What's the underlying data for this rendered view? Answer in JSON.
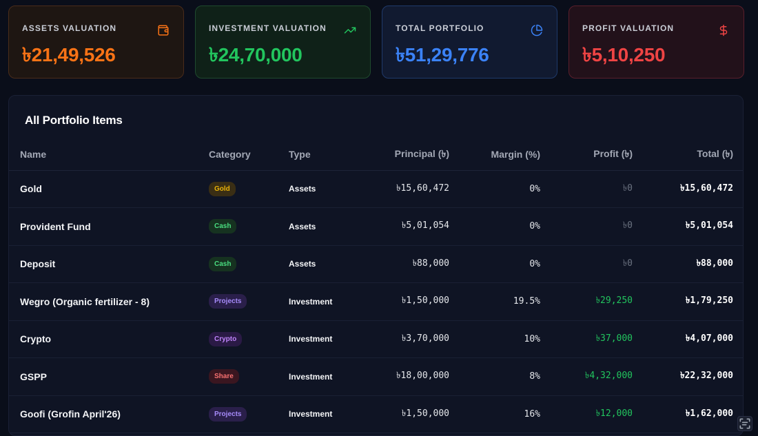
{
  "cards": [
    {
      "label": "ASSETS VALUATION",
      "value": "৳21,49,526",
      "icon": "wallet-icon"
    },
    {
      "label": "INVESTMENT VALUATION",
      "value": "৳24,70,000",
      "icon": "trending-up-icon"
    },
    {
      "label": "TOTAL PORTFOLIO",
      "value": "৳51,29,776",
      "icon": "pie-chart-icon"
    },
    {
      "label": "PROFIT VALUATION",
      "value": "৳5,10,250",
      "icon": "dollar-icon"
    }
  ],
  "table": {
    "title": "All Portfolio Items",
    "headers": {
      "name": "Name",
      "category": "Category",
      "type": "Type",
      "principal": "Principal (৳)",
      "margin": "Margin (%)",
      "profit": "Profit (৳)",
      "total": "Total (৳)"
    },
    "rows": [
      {
        "name": "Gold",
        "category": "Gold",
        "type": "Assets",
        "principal": "৳15,60,472",
        "margin": "0%",
        "profit": "৳0",
        "total": "৳15,60,472"
      },
      {
        "name": "Provident Fund",
        "category": "Cash",
        "type": "Assets",
        "principal": "৳5,01,054",
        "margin": "0%",
        "profit": "৳0",
        "total": "৳5,01,054"
      },
      {
        "name": "Deposit",
        "category": "Cash",
        "type": "Assets",
        "principal": "৳88,000",
        "margin": "0%",
        "profit": "৳0",
        "total": "৳88,000"
      },
      {
        "name": "Wegro (Organic fertilizer - 8)",
        "category": "Projects",
        "type": "Investment",
        "principal": "৳1,50,000",
        "margin": "19.5%",
        "profit": "৳29,250",
        "total": "৳1,79,250"
      },
      {
        "name": "Crypto",
        "category": "Crypto",
        "type": "Investment",
        "principal": "৳3,70,000",
        "margin": "10%",
        "profit": "৳37,000",
        "total": "৳4,07,000"
      },
      {
        "name": "GSPP",
        "category": "Share",
        "type": "Investment",
        "principal": "৳18,00,000",
        "margin": "8%",
        "profit": "৳4,32,000",
        "total": "৳22,32,000"
      },
      {
        "name": "Goofi (Grofin April'26)",
        "category": "Projects",
        "type": "Investment",
        "principal": "৳1,50,000",
        "margin": "16%",
        "profit": "৳12,000",
        "total": "৳1,62,000"
      }
    ]
  },
  "colors": {
    "assets": "#f97316",
    "investment": "#22c55e",
    "total": "#3b82f6",
    "profit": "#ef4444",
    "background": "#0a0e1a"
  }
}
